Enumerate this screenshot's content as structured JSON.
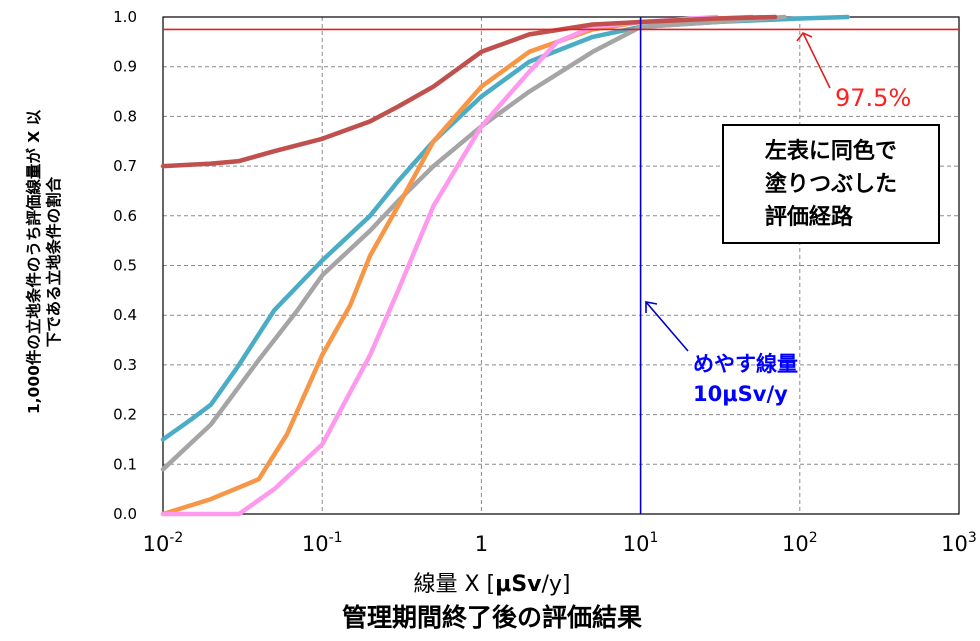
{
  "chart_data": {
    "type": "line",
    "title": "管理期間終了後の評価結果",
    "ylabel_lines": [
      "1,000件の立地条件のうち評価線量が X 以",
      "下である立地条件の割合"
    ],
    "xlabel_prefix": "線量 X [",
    "xlabel_bold": "μSv",
    "xlabel_suffix": "/y]",
    "xscale": "log",
    "xlim": [
      0.01,
      1000
    ],
    "ylim": [
      0,
      1.0
    ],
    "grid": true,
    "x_ticks": [
      {
        "base": "10",
        "exp": "-2"
      },
      {
        "base": "10",
        "exp": "-1"
      },
      {
        "base": "1",
        "exp": ""
      },
      {
        "base": "10",
        "exp": "1"
      },
      {
        "base": "10",
        "exp": "2"
      },
      {
        "base": "10",
        "exp": "3"
      }
    ],
    "y_ticks": [
      "0.0",
      "0.1",
      "0.2",
      "0.3",
      "0.4",
      "0.5",
      "0.6",
      "0.7",
      "0.8",
      "0.9",
      "1.0"
    ],
    "series": [
      {
        "color": "#4bacc6",
        "points": [
          [
            0.01,
            0.15
          ],
          [
            0.015,
            0.19
          ],
          [
            0.02,
            0.22
          ],
          [
            0.03,
            0.3
          ],
          [
            0.05,
            0.41
          ],
          [
            0.1,
            0.51
          ],
          [
            0.2,
            0.6
          ],
          [
            0.3,
            0.67
          ],
          [
            0.5,
            0.75
          ],
          [
            1,
            0.84
          ],
          [
            2,
            0.91
          ],
          [
            5,
            0.96
          ],
          [
            10,
            0.98
          ],
          [
            30,
            0.99
          ],
          [
            100,
            0.997
          ],
          [
            200,
            1.0
          ]
        ]
      },
      {
        "color": "#a5a5a5",
        "points": [
          [
            0.01,
            0.09
          ],
          [
            0.02,
            0.18
          ],
          [
            0.04,
            0.31
          ],
          [
            0.07,
            0.41
          ],
          [
            0.1,
            0.48
          ],
          [
            0.2,
            0.57
          ],
          [
            0.3,
            0.63
          ],
          [
            0.5,
            0.7
          ],
          [
            1,
            0.78
          ],
          [
            2,
            0.85
          ],
          [
            5,
            0.93
          ],
          [
            10,
            0.98
          ],
          [
            30,
            0.99
          ],
          [
            80,
            1.0
          ]
        ]
      },
      {
        "color": "#f79646",
        "points": [
          [
            0.01,
            0.0
          ],
          [
            0.02,
            0.03
          ],
          [
            0.04,
            0.07
          ],
          [
            0.06,
            0.16
          ],
          [
            0.1,
            0.32
          ],
          [
            0.15,
            0.42
          ],
          [
            0.2,
            0.52
          ],
          [
            0.3,
            0.62
          ],
          [
            0.5,
            0.75
          ],
          [
            1,
            0.86
          ],
          [
            2,
            0.93
          ],
          [
            5,
            0.975
          ],
          [
            10,
            0.99
          ],
          [
            50,
            1.0
          ]
        ]
      },
      {
        "color": "#ff99ee",
        "points": [
          [
            0.01,
            0.0
          ],
          [
            0.03,
            0.0
          ],
          [
            0.05,
            0.05
          ],
          [
            0.1,
            0.14
          ],
          [
            0.2,
            0.32
          ],
          [
            0.3,
            0.45
          ],
          [
            0.5,
            0.62
          ],
          [
            1,
            0.78
          ],
          [
            2,
            0.89
          ],
          [
            3,
            0.95
          ],
          [
            5,
            0.98
          ],
          [
            10,
            0.99
          ],
          [
            30,
            1.0
          ]
        ]
      },
      {
        "color": "#c0504d",
        "points": [
          [
            0.01,
            0.7
          ],
          [
            0.02,
            0.705
          ],
          [
            0.03,
            0.71
          ],
          [
            0.05,
            0.73
          ],
          [
            0.1,
            0.755
          ],
          [
            0.2,
            0.79
          ],
          [
            0.3,
            0.82
          ],
          [
            0.5,
            0.86
          ],
          [
            1,
            0.93
          ],
          [
            2,
            0.965
          ],
          [
            5,
            0.985
          ],
          [
            10,
            0.99
          ],
          [
            30,
            0.997
          ],
          [
            70,
            1.0
          ]
        ]
      }
    ],
    "reference_lines": [
      {
        "orientation": "horizontal",
        "y": 0.975,
        "color": "#e02020"
      },
      {
        "orientation": "vertical",
        "x": 10,
        "color": "#0000cc"
      }
    ],
    "annotations": {
      "percent_label": "97.5%",
      "box_lines": [
        "左表に同色で",
        "塗りつぶした",
        "評価経路"
      ],
      "guide_lines": [
        "めやす線量",
        "10μSv/y"
      ]
    }
  }
}
